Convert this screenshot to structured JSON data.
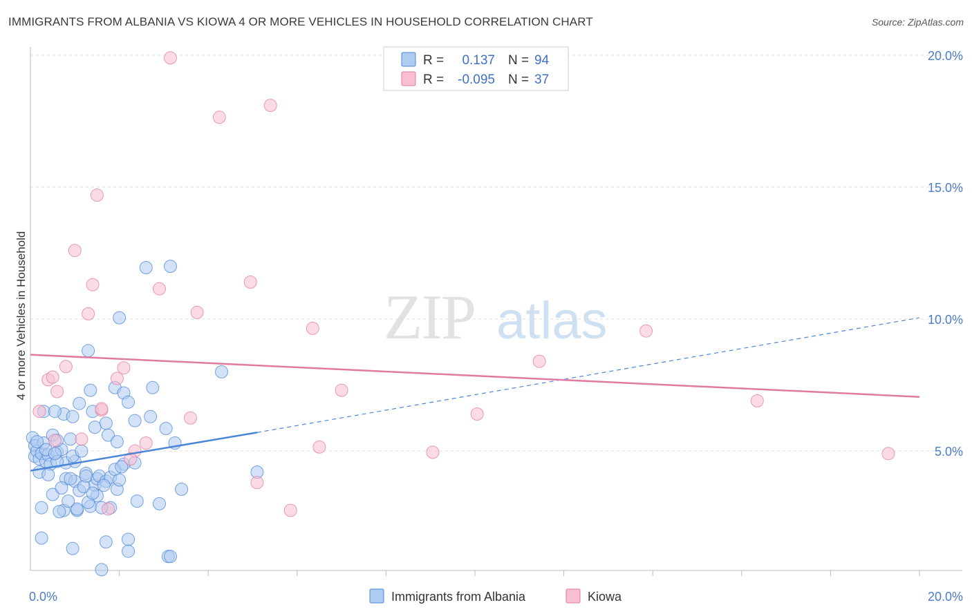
{
  "title": "IMMIGRANTS FROM ALBANIA VS KIOWA 4 OR MORE VEHICLES IN HOUSEHOLD CORRELATION CHART",
  "source": "Source: ZipAtlas.com",
  "watermark": {
    "zip": "ZIP",
    "atlas": "atlas"
  },
  "legend": {
    "r_label": "R =",
    "n_label": "N =",
    "rows": [
      {
        "series": "Immigrants from Albania",
        "r": "0.137",
        "n": "94",
        "fill": "#aecbf0",
        "stroke": "#4a86d8"
      },
      {
        "series": "Kiowa",
        "r": "-0.095",
        "n": "37",
        "fill": "#f7bfd0",
        "stroke": "#e07aa0"
      }
    ]
  },
  "chart_data": {
    "type": "scatter",
    "xlabel": "",
    "ylabel": "4 or more Vehicles in Household",
    "xlim": [
      0,
      20
    ],
    "ylim": [
      0.5,
      20.5
    ],
    "x_tick_labels": [
      {
        "value": 0,
        "label": "0.0%"
      },
      {
        "value": 20,
        "label": "20.0%"
      }
    ],
    "x_minor_ticks": [
      2,
      4,
      6,
      8,
      10,
      12,
      14,
      16,
      18,
      20
    ],
    "y_ticks": [
      {
        "value": 5,
        "label": "5.0%"
      },
      {
        "value": 10,
        "label": "10.0%"
      },
      {
        "value": 15,
        "label": "15.0%"
      },
      {
        "value": 20,
        "label": "20.0%"
      }
    ],
    "grid": true,
    "series": [
      {
        "name": "Immigrants from Albania",
        "color": "#4a86d8",
        "fill": "#aecbf0",
        "trend": {
          "x0": 0,
          "y0": 4.25,
          "x1": 5.1,
          "y1": 5.7,
          "dash_to_x": 20,
          "dash_to_y": 10.05
        },
        "points": [
          [
            0.05,
            5.5
          ],
          [
            0.1,
            5.2
          ],
          [
            0.1,
            4.8
          ],
          [
            0.15,
            5.0
          ],
          [
            0.2,
            4.7
          ],
          [
            0.25,
            4.9
          ],
          [
            0.3,
            5.3
          ],
          [
            0.35,
            4.6
          ],
          [
            0.4,
            4.85
          ],
          [
            0.45,
            4.5
          ],
          [
            0.2,
            4.2
          ],
          [
            0.4,
            4.1
          ],
          [
            0.6,
            4.95
          ],
          [
            0.7,
            5.05
          ],
          [
            0.8,
            4.55
          ],
          [
            0.5,
            5.6
          ],
          [
            0.9,
            5.45
          ],
          [
            0.3,
            6.5
          ],
          [
            0.6,
            5.4
          ],
          [
            1.0,
            4.6
          ],
          [
            0.75,
            6.4
          ],
          [
            0.95,
            6.3
          ],
          [
            1.1,
            6.8
          ],
          [
            1.35,
            7.3
          ],
          [
            1.4,
            6.5
          ],
          [
            1.7,
            6.05
          ],
          [
            1.9,
            7.4
          ],
          [
            2.1,
            7.2
          ],
          [
            2.2,
            6.85
          ],
          [
            2.75,
            7.4
          ],
          [
            1.3,
            8.8
          ],
          [
            2.0,
            10.05
          ],
          [
            2.6,
            11.95
          ],
          [
            3.15,
            12.0
          ],
          [
            4.3,
            8.0
          ],
          [
            0.6,
            4.6
          ],
          [
            0.8,
            3.95
          ],
          [
            1.0,
            3.85
          ],
          [
            1.25,
            4.15
          ],
          [
            1.45,
            3.7
          ],
          [
            1.5,
            3.95
          ],
          [
            1.55,
            4.05
          ],
          [
            1.7,
            3.85
          ],
          [
            1.8,
            4.0
          ],
          [
            1.9,
            4.3
          ],
          [
            2.1,
            4.5
          ],
          [
            2.35,
            4.55
          ],
          [
            0.25,
            2.85
          ],
          [
            0.5,
            3.35
          ],
          [
            0.7,
            3.6
          ],
          [
            0.9,
            3.95
          ],
          [
            1.05,
            2.75
          ],
          [
            1.1,
            3.5
          ],
          [
            1.2,
            3.65
          ],
          [
            1.35,
            2.9
          ],
          [
            1.5,
            3.3
          ],
          [
            1.65,
            3.7
          ],
          [
            1.8,
            2.85
          ],
          [
            1.95,
            3.55
          ],
          [
            2.0,
            3.9
          ],
          [
            1.7,
            1.55
          ],
          [
            2.2,
            1.65
          ],
          [
            2.2,
            1.2
          ],
          [
            0.95,
            1.3
          ],
          [
            1.6,
            0.5
          ],
          [
            3.1,
            1.0
          ],
          [
            3.15,
            1.0
          ],
          [
            0.25,
            1.7
          ],
          [
            0.75,
            2.75
          ],
          [
            1.05,
            2.8
          ],
          [
            1.3,
            3.05
          ],
          [
            1.4,
            3.4
          ],
          [
            1.6,
            2.85
          ],
          [
            2.4,
            3.1
          ],
          [
            2.9,
            3.0
          ],
          [
            3.4,
            3.55
          ],
          [
            3.25,
            5.3
          ],
          [
            3.05,
            5.85
          ],
          [
            0.95,
            4.8
          ],
          [
            1.15,
            5.0
          ],
          [
            1.75,
            5.6
          ],
          [
            1.95,
            5.35
          ],
          [
            0.55,
            6.5
          ],
          [
            1.45,
            5.9
          ],
          [
            2.35,
            6.15
          ],
          [
            0.65,
            2.7
          ],
          [
            0.85,
            3.1
          ],
          [
            1.25,
            4.05
          ],
          [
            2.05,
            4.4
          ],
          [
            5.1,
            4.2
          ],
          [
            0.35,
            5.05
          ],
          [
            0.55,
            4.9
          ],
          [
            0.15,
            5.35
          ],
          [
            2.7,
            6.3
          ]
        ]
      },
      {
        "name": "Kiowa",
        "color": "#e07aa0",
        "fill": "#f7bfd0",
        "trend": {
          "x0": 0,
          "y0": 8.65,
          "x1": 20,
          "y1": 7.05
        },
        "points": [
          [
            3.15,
            19.9
          ],
          [
            4.25,
            17.65
          ],
          [
            5.4,
            18.1
          ],
          [
            1.5,
            14.7
          ],
          [
            1.0,
            12.6
          ],
          [
            1.4,
            11.3
          ],
          [
            1.3,
            10.2
          ],
          [
            2.9,
            11.15
          ],
          [
            3.75,
            10.25
          ],
          [
            4.95,
            11.4
          ],
          [
            6.35,
            9.65
          ],
          [
            13.85,
            9.55
          ],
          [
            11.45,
            8.4
          ],
          [
            0.4,
            7.7
          ],
          [
            0.5,
            7.8
          ],
          [
            0.6,
            7.25
          ],
          [
            0.8,
            8.2
          ],
          [
            1.95,
            7.75
          ],
          [
            2.1,
            8.15
          ],
          [
            7.0,
            7.3
          ],
          [
            16.35,
            6.9
          ],
          [
            0.2,
            6.5
          ],
          [
            1.6,
            6.55
          ],
          [
            3.6,
            6.25
          ],
          [
            10.05,
            6.4
          ],
          [
            0.55,
            5.4
          ],
          [
            1.15,
            5.45
          ],
          [
            2.6,
            5.3
          ],
          [
            2.35,
            5.0
          ],
          [
            2.25,
            4.7
          ],
          [
            6.5,
            5.15
          ],
          [
            9.05,
            4.95
          ],
          [
            19.3,
            4.9
          ],
          [
            5.1,
            3.8
          ],
          [
            5.85,
            2.75
          ],
          [
            1.75,
            2.8
          ],
          [
            1.6,
            6.6
          ]
        ]
      }
    ]
  },
  "bottom_legend": [
    "Immigrants from Albania",
    "Kiowa"
  ]
}
